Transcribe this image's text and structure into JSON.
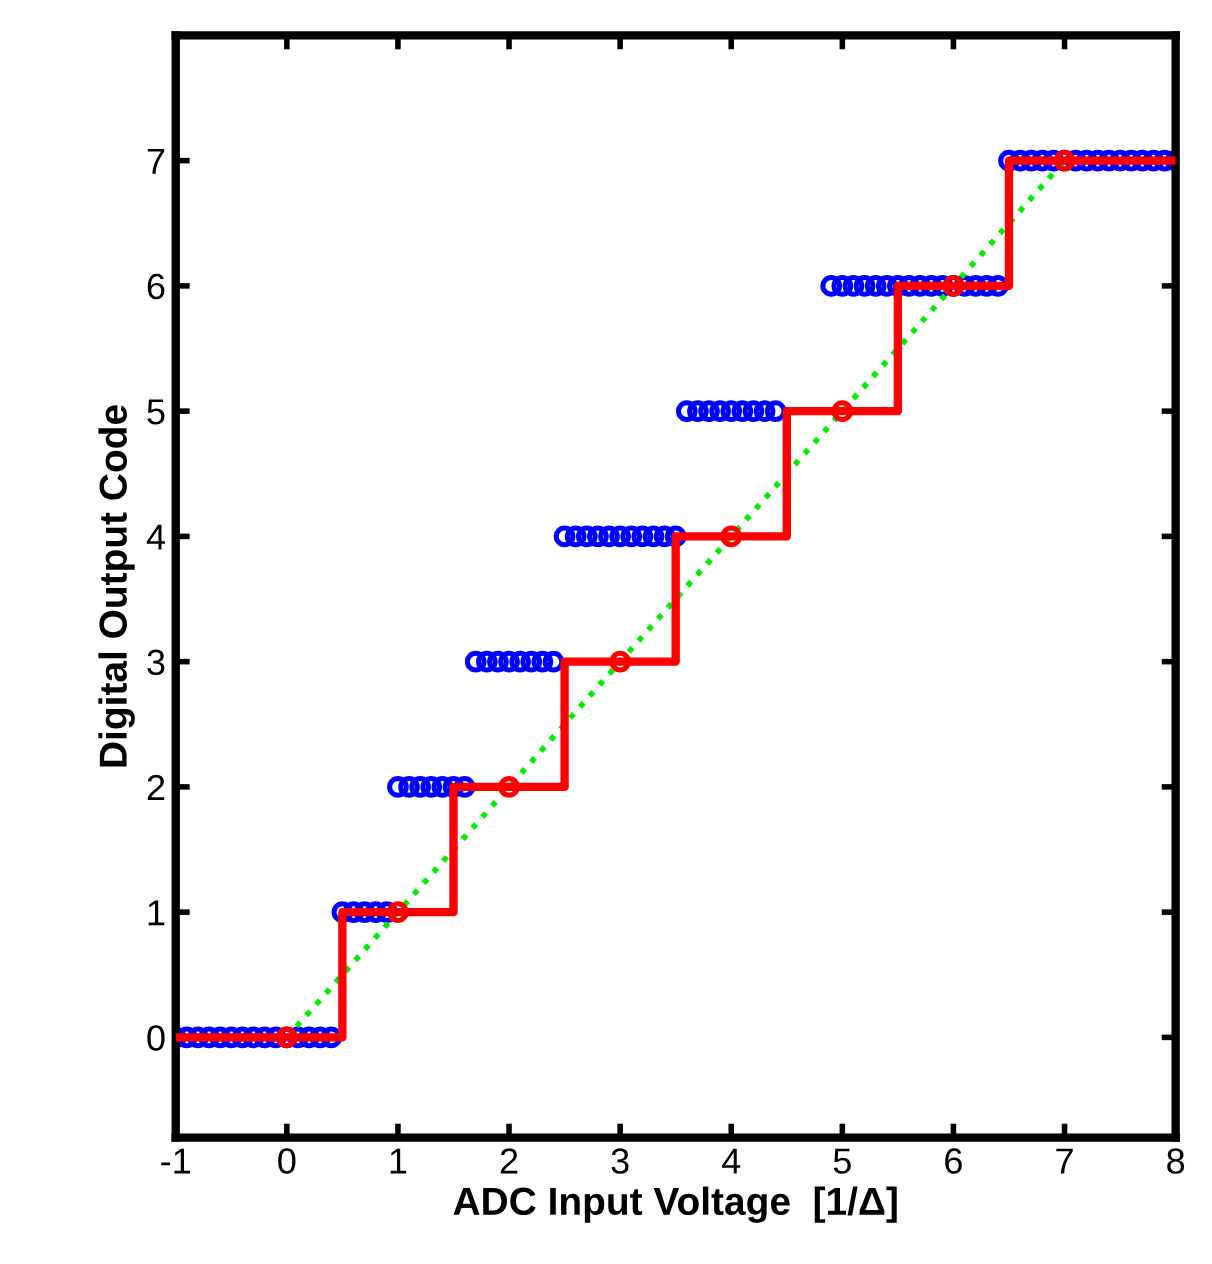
{
  "chart_data": {
    "type": "line",
    "xlabel": "ADC Input Voltage  [1/Δ]",
    "ylabel": "Digital Output Code",
    "xlim": [
      -1,
      8
    ],
    "ylim": [
      -0.8,
      8
    ],
    "xticks": [
      -1,
      0,
      1,
      2,
      3,
      4,
      5,
      6,
      7,
      8
    ],
    "yticks": [
      0,
      1,
      2,
      3,
      4,
      5,
      6,
      7
    ],
    "grid": false,
    "series": [
      {
        "type": "scatter",
        "color": "#0000ff",
        "marker": "circle",
        "x": [
          -1.0,
          -0.9,
          -0.8,
          -0.7,
          -0.6,
          -0.5,
          -0.4,
          -0.3,
          -0.2,
          -0.1,
          0.0,
          0.1,
          0.2,
          0.3,
          0.4,
          0.5,
          0.6,
          0.7,
          0.8,
          0.9,
          1.0,
          1.1,
          1.2,
          1.3,
          1.4,
          1.5,
          1.6,
          1.7,
          1.8,
          1.9,
          2.0,
          2.1,
          2.2,
          2.3,
          2.4,
          2.5,
          2.6,
          2.7,
          2.8,
          2.9,
          3.0,
          3.1,
          3.2,
          3.3,
          3.4,
          3.5,
          3.6,
          3.7,
          3.8,
          3.9,
          4.0,
          4.1,
          4.2,
          4.3,
          4.4,
          4.9,
          5.0,
          5.1,
          5.2,
          5.3,
          5.4,
          5.5,
          5.6,
          5.7,
          5.8,
          5.9,
          6.0,
          6.1,
          6.2,
          6.3,
          6.4,
          6.5,
          6.6,
          6.7,
          6.8,
          6.9,
          7.0,
          7.1,
          7.2,
          7.3,
          7.4,
          7.5,
          7.6,
          7.7,
          7.8,
          7.9,
          8.0
        ],
        "values": [
          0,
          0,
          0,
          0,
          0,
          0,
          0,
          0,
          0,
          0,
          0,
          0,
          0,
          0,
          0,
          1,
          1,
          1,
          1,
          1,
          2,
          2,
          2,
          2,
          2,
          2,
          2,
          3,
          3,
          3,
          3,
          3,
          3,
          3,
          3,
          4,
          4,
          4,
          4,
          4,
          4,
          4,
          4,
          4,
          4,
          4,
          5,
          5,
          5,
          5,
          5,
          5,
          5,
          5,
          5,
          6,
          6,
          6,
          6,
          6,
          6,
          6,
          6,
          6,
          6,
          6,
          6,
          6,
          6,
          6,
          6,
          7,
          7,
          7,
          7,
          7,
          7,
          7,
          7,
          7,
          7,
          7,
          7,
          7,
          7,
          7,
          7
        ]
      },
      {
        "color": "#00ee00",
        "line_style": "dotted",
        "marker": "none",
        "x": [
          0,
          7
        ],
        "values": [
          0,
          7
        ]
      },
      {
        "type": "step",
        "color": "#ff0000",
        "line_style": "solid",
        "marker": "none",
        "x": [
          -1,
          0,
          1,
          2,
          3,
          4,
          5,
          6,
          7,
          8
        ],
        "values": [
          0,
          0,
          1,
          2,
          3,
          4,
          5,
          6,
          7,
          7
        ]
      },
      {
        "type": "scatter",
        "color": "#ff0000",
        "marker": "circle",
        "x": [
          0,
          1,
          2,
          3,
          4,
          5,
          6,
          7
        ],
        "values": [
          0,
          1,
          2,
          3,
          4,
          5,
          6,
          7
        ]
      }
    ]
  }
}
